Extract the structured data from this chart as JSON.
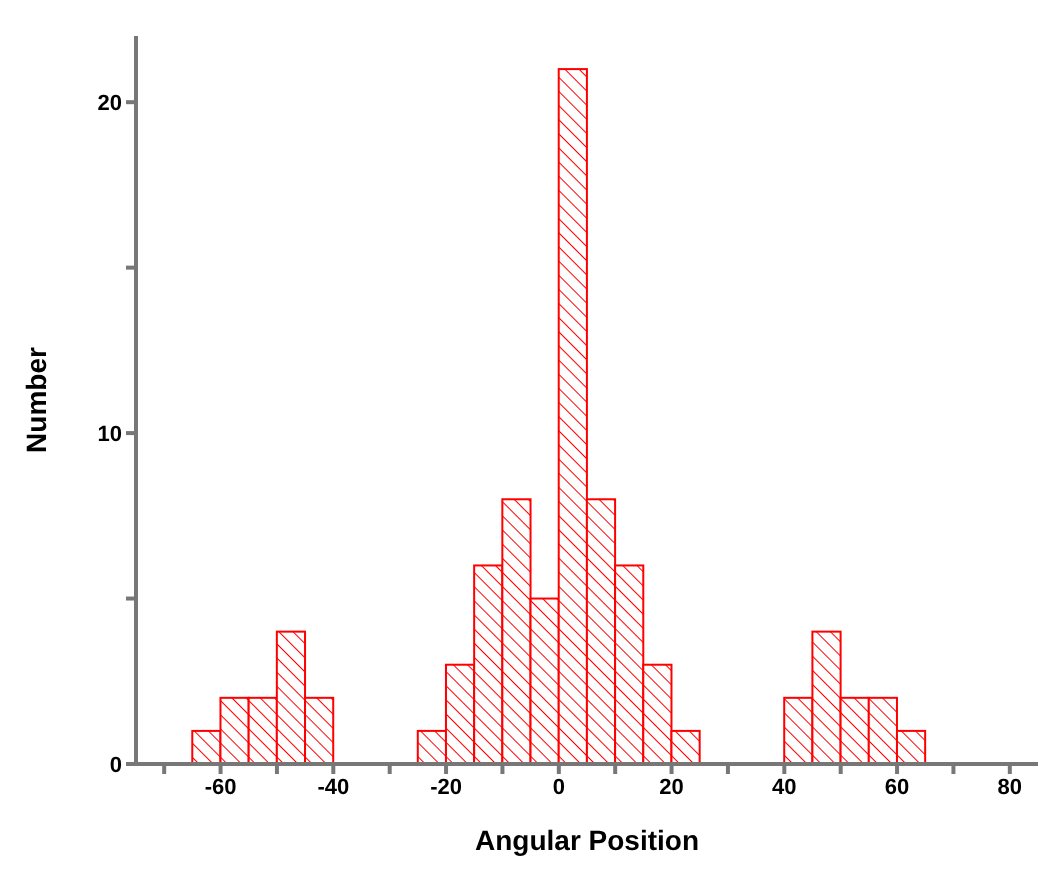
{
  "chart_data": {
    "type": "histogram",
    "xlabel": "Angular Position",
    "ylabel": "Number",
    "bins": [
      -65,
      -60,
      -55,
      -50,
      -45,
      -40,
      -35,
      -30,
      -25,
      -20,
      -15,
      -10,
      -5,
      0,
      5,
      10,
      15,
      20,
      25,
      30,
      35,
      40,
      45,
      50,
      55,
      60,
      65
    ],
    "values": [
      1,
      2,
      2,
      4,
      2,
      0,
      0,
      0,
      1,
      3,
      6,
      8,
      5,
      21,
      8,
      6,
      3,
      1,
      0,
      0,
      0,
      2,
      4,
      2,
      2,
      1
    ],
    "color": "#ff0000",
    "xlim": [
      -75,
      85
    ],
    "xticks": [
      {
        "value": -70,
        "label": null
      },
      -60,
      {
        "value": -50,
        "label": null
      },
      -40,
      {
        "value": -30,
        "label": null
      },
      -20,
      {
        "value": -10,
        "label": null
      },
      0,
      {
        "value": 10,
        "label": null
      },
      20,
      {
        "value": 30,
        "label": null
      },
      40,
      {
        "value": 50,
        "label": null
      },
      60,
      {
        "value": 70,
        "label": null
      },
      80
    ],
    "ylim": [
      0,
      22
    ],
    "yticks": [
      0,
      {
        "value": 5,
        "label": null
      },
      10,
      {
        "value": 15,
        "label": null
      },
      20
    ],
    "grid": false
  }
}
